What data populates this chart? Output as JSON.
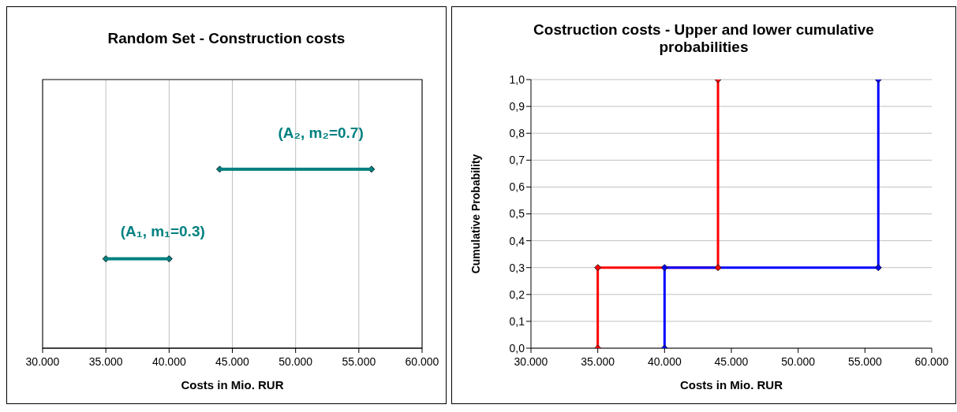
{
  "chart_data": [
    {
      "type": "bar",
      "orientation": "horizontal",
      "title": "Random Set - Construction costs",
      "xlabel": "Costs in Mio. RUR",
      "categories": [
        null,
        null
      ],
      "base": [
        44000,
        35000
      ],
      "values": [
        12000,
        5000
      ],
      "color": "#008080",
      "annotations": [
        "(A₂, m₂=0.7)",
        "(A₁, m₁=0.3)"
      ],
      "xlim": [
        30000,
        60000
      ],
      "xticks": [
        {
          "value": 30000,
          "label": "30.000"
        },
        {
          "value": 35000,
          "label": "35.000"
        },
        {
          "value": 40000,
          "label": "40.000"
        },
        {
          "value": 45000,
          "label": "45.000"
        },
        {
          "value": 50000,
          "label": "50.000"
        },
        {
          "value": 55000,
          "label": "55.000"
        },
        {
          "value": 60000,
          "label": "60.000"
        }
      ],
      "grid": "x",
      "marker": "diamond"
    },
    {
      "type": "line",
      "title": "Costruction costs - Upper and lower cumulative probabilities",
      "xlabel": "Costs in Mio. RUR",
      "ylabel": "Cumulative Probability",
      "series": [
        {
          "x": [
            35000,
            35000,
            44000,
            44000
          ],
          "values": [
            0,
            0.3,
            0.3,
            1.0
          ],
          "color": "#ff0000"
        },
        {
          "x": [
            40000,
            40000,
            56000,
            56000
          ],
          "values": [
            0,
            0.3,
            0.3,
            1.0
          ],
          "color": "#0000ff"
        }
      ],
      "xlim": [
        30000,
        60000
      ],
      "xticks": [
        {
          "value": 30000,
          "label": "30.000"
        },
        {
          "value": 35000,
          "label": "35.000"
        },
        {
          "value": 40000,
          "label": "40.000"
        },
        {
          "value": 45000,
          "label": "45.000"
        },
        {
          "value": 50000,
          "label": "50.000"
        },
        {
          "value": 55000,
          "label": "55.000"
        },
        {
          "value": 60000,
          "label": "60.000"
        }
      ],
      "ylim": [
        0,
        1
      ],
      "yticks": [
        {
          "value": 0,
          "label": "0,0"
        },
        {
          "value": 0.1,
          "label": "0,1"
        },
        {
          "value": 0.2,
          "label": "0,2"
        },
        {
          "value": 0.3,
          "label": "0,3"
        },
        {
          "value": 0.4,
          "label": "0,4"
        },
        {
          "value": 0.5,
          "label": "0,5"
        },
        {
          "value": 0.6,
          "label": "0,6"
        },
        {
          "value": 0.7,
          "label": "0,7"
        },
        {
          "value": 0.8,
          "label": "0,8"
        },
        {
          "value": 0.9,
          "label": "0,9"
        },
        {
          "value": 1.0,
          "label": "1,0"
        }
      ],
      "grid": "y",
      "marker": "diamond"
    }
  ]
}
